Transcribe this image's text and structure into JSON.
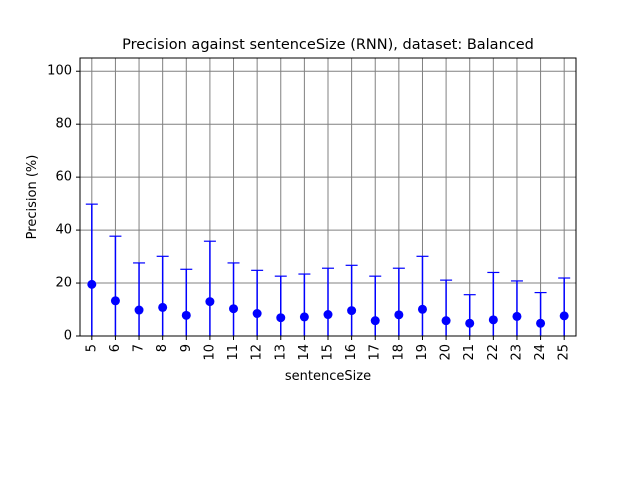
{
  "chart_data": {
    "type": "scatter",
    "title": "Precision against sentenceSize (RNN), dataset: Balanced",
    "xlabel": "sentenceSize",
    "ylabel": "Precision (%)",
    "x_tick_labels": [
      "5",
      "6",
      "7",
      "8",
      "9",
      "10",
      "11",
      "12",
      "13",
      "14",
      "15",
      "16",
      "17",
      "18",
      "19",
      "20",
      "21",
      "22",
      "23",
      "24",
      "25"
    ],
    "y_tick_labels": [
      "0",
      "20",
      "40",
      "60",
      "80",
      "100"
    ],
    "ylim": [
      0,
      105
    ],
    "grid": true,
    "series": [
      {
        "x": [
          5,
          6,
          7,
          8,
          9,
          10,
          11,
          12,
          13,
          14,
          15,
          16,
          17,
          18,
          19,
          20,
          21,
          22,
          23,
          24,
          25
        ],
        "y": [
          19.5,
          13.3,
          9.8,
          10.8,
          7.8,
          13.0,
          10.3,
          8.5,
          6.9,
          7.2,
          8.1,
          9.6,
          5.8,
          8.0,
          10.1,
          5.8,
          4.8,
          6.1,
          7.4,
          4.8,
          7.6
        ],
        "error_upper": [
          49.8,
          37.7,
          27.6,
          30.1,
          25.2,
          35.8,
          27.6,
          24.8,
          22.6,
          23.4,
          25.6,
          26.7,
          22.6,
          25.6,
          30.1,
          21.1,
          15.6,
          24.0,
          20.8,
          16.4,
          21.9
        ],
        "error_lower": [
          0,
          0,
          0,
          0,
          0,
          0,
          0,
          0,
          0,
          0,
          0,
          0,
          0,
          0,
          0,
          0,
          0,
          0,
          0,
          0,
          0
        ]
      }
    ],
    "colors": {
      "series": "#0000ff",
      "grid": "#808080",
      "axis": "#000000"
    }
  }
}
